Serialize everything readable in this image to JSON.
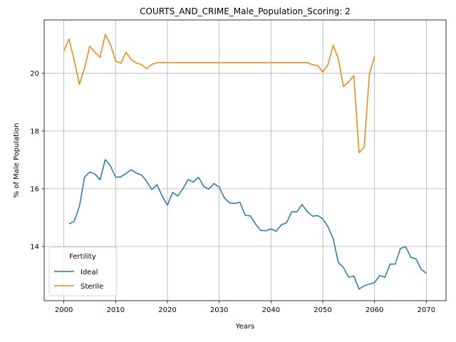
{
  "chart_data": {
    "type": "line",
    "title": "COURTS_AND_CRIME_Male_Population_Scoring: 2",
    "xlabel": "Years",
    "ylabel": "% of Male Population",
    "xlim": [
      1996.2,
      2073.8
    ],
    "ylim": [
      12.12,
      21.85
    ],
    "xticks": [
      2000,
      2010,
      2020,
      2030,
      2040,
      2050,
      2060,
      2070
    ],
    "yticks": [
      14,
      16,
      18,
      20
    ],
    "grid": true,
    "legend": {
      "title": "Fertility",
      "placement": "lower-left"
    },
    "series": [
      {
        "name": "Ideal",
        "color": "#1f77b4",
        "x": [
          2001,
          2002,
          2003,
          2004,
          2005,
          2006,
          2007,
          2008,
          2009,
          2010,
          2011,
          2012,
          2013,
          2014,
          2015,
          2016,
          2017,
          2018,
          2019,
          2020,
          2021,
          2022,
          2023,
          2024,
          2025,
          2026,
          2027,
          2028,
          2029,
          2030,
          2031,
          2032,
          2033,
          2034,
          2035,
          2036,
          2037,
          2038,
          2039,
          2040,
          2041,
          2042,
          2043,
          2044,
          2045,
          2046,
          2047,
          2048,
          2049,
          2050,
          2051,
          2052,
          2053,
          2054,
          2055,
          2056,
          2057,
          2058,
          2059,
          2060,
          2061,
          2062,
          2063,
          2064,
          2065,
          2066,
          2067,
          2068,
          2069,
          2070
        ],
        "values": [
          14.78,
          14.87,
          15.38,
          16.4,
          16.58,
          16.51,
          16.31,
          17.01,
          16.79,
          16.4,
          16.41,
          16.53,
          16.66,
          16.54,
          16.48,
          16.25,
          15.97,
          16.14,
          15.74,
          15.43,
          15.87,
          15.75,
          16.0,
          16.32,
          16.23,
          16.4,
          16.08,
          15.99,
          16.18,
          16.06,
          15.68,
          15.51,
          15.49,
          15.53,
          15.08,
          15.06,
          14.78,
          14.56,
          14.54,
          14.61,
          14.52,
          14.75,
          14.82,
          15.2,
          15.2,
          15.45,
          15.21,
          15.05,
          15.07,
          14.96,
          14.68,
          14.27,
          13.44,
          13.27,
          12.93,
          12.98,
          12.52,
          12.64,
          12.69,
          12.75,
          12.99,
          12.93,
          13.39,
          13.39,
          13.93,
          13.99,
          13.62,
          13.57,
          13.21,
          13.07
        ]
      },
      {
        "name": "Sterile",
        "color": "#ff7f0e",
        "x": [
          2000,
          2001,
          2002,
          2003,
          2004,
          2005,
          2006,
          2007,
          2008,
          2009,
          2010,
          2011,
          2012,
          2013,
          2014,
          2015,
          2016,
          2017,
          2018,
          2019,
          2020,
          2021,
          2022,
          2023,
          2024,
          2025,
          2026,
          2027,
          2028,
          2029,
          2030,
          2031,
          2032,
          2033,
          2034,
          2035,
          2036,
          2037,
          2038,
          2039,
          2040,
          2041,
          2042,
          2043,
          2044,
          2045,
          2046,
          2047,
          2048,
          2049,
          2050,
          2051,
          2052,
          2053,
          2054,
          2055,
          2056,
          2057,
          2058,
          2059,
          2060
        ],
        "values": [
          20.78,
          21.19,
          20.45,
          19.62,
          20.18,
          20.94,
          20.73,
          20.56,
          21.35,
          21.0,
          20.43,
          20.35,
          20.73,
          20.48,
          20.36,
          20.3,
          20.16,
          20.31,
          20.37,
          20.37,
          20.37,
          20.37,
          20.37,
          20.37,
          20.37,
          20.37,
          20.37,
          20.37,
          20.37,
          20.37,
          20.37,
          20.37,
          20.37,
          20.37,
          20.37,
          20.37,
          20.37,
          20.37,
          20.37,
          20.37,
          20.37,
          20.37,
          20.37,
          20.37,
          20.37,
          20.37,
          20.37,
          20.37,
          20.3,
          20.27,
          20.05,
          20.29,
          20.97,
          20.51,
          19.54,
          19.71,
          19.92,
          17.25,
          17.45,
          19.97,
          20.59
        ]
      }
    ]
  }
}
